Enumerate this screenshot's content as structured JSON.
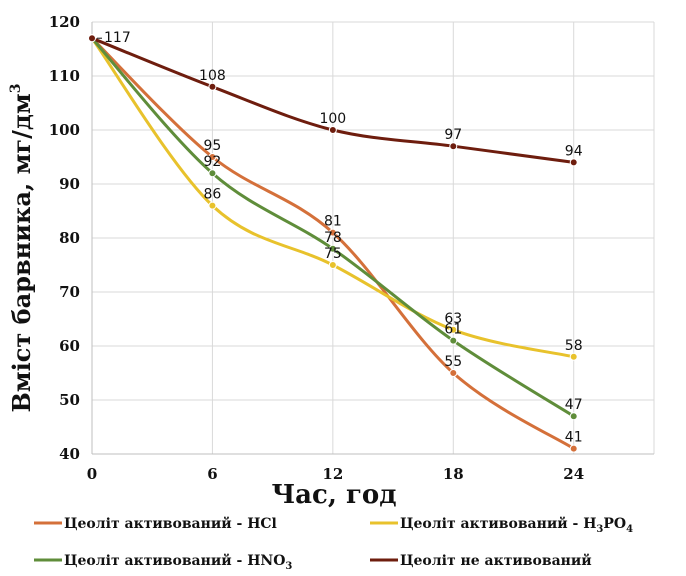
{
  "chart_data": {
    "type": "line",
    "xlabel": "Час, год",
    "ylabel": "Вміст барвника, мг/дм",
    "ylabel_sup": "3",
    "x": [
      0,
      6,
      12,
      18,
      24
    ],
    "xlim": [
      0,
      28
    ],
    "ylim": [
      40,
      120
    ],
    "x_ticks": [
      0,
      6,
      12,
      18,
      24
    ],
    "y_ticks": [
      40,
      50,
      60,
      70,
      80,
      90,
      100,
      110,
      120
    ],
    "grid": true,
    "legend_position": "bottom",
    "series": [
      {
        "name": "Цеоліт активований - HCl",
        "color": "#d4703a",
        "values": [
          117,
          95,
          81,
          55,
          41
        ]
      },
      {
        "name": "Цеоліт активований - H3PO4",
        "name_main": "Цеоліт активований - H",
        "name_sub1": "3",
        "name_mid": "PO",
        "name_sub2": "4",
        "color": "#e8c22c",
        "values": [
          117,
          86,
          75,
          63,
          58
        ]
      },
      {
        "name": "Цеоліт активований - HNO3",
        "name_main": "Цеоліт активований - HNO",
        "name_sub1": "3",
        "color": "#5f8d3a",
        "values": [
          117,
          92,
          78,
          61,
          47
        ]
      },
      {
        "name": "Цеоліт не активований",
        "color": "#6e1d0e",
        "values": [
          117,
          108,
          100,
          97,
          94
        ]
      }
    ],
    "data_labels": [
      {
        "x": 0,
        "y": 117,
        "text": "117"
      },
      {
        "x": 6,
        "y": 108,
        "text": "108"
      },
      {
        "x": 12,
        "y": 100,
        "text": "100"
      },
      {
        "x": 18,
        "y": 97,
        "text": "97"
      },
      {
        "x": 24,
        "y": 94,
        "text": "94"
      },
      {
        "x": 6,
        "y": 95,
        "text": "95"
      },
      {
        "x": 6,
        "y": 92,
        "text": "92"
      },
      {
        "x": 6,
        "y": 86,
        "text": "86"
      },
      {
        "x": 12,
        "y": 81,
        "text": "81"
      },
      {
        "x": 12,
        "y": 78,
        "text": "78"
      },
      {
        "x": 12,
        "y": 75,
        "text": "75"
      },
      {
        "x": 18,
        "y": 63,
        "text": "63"
      },
      {
        "x": 18,
        "y": 61,
        "text": "61"
      },
      {
        "x": 18,
        "y": 55,
        "text": "55"
      },
      {
        "x": 24,
        "y": 58,
        "text": "58"
      },
      {
        "x": 24,
        "y": 47,
        "text": "47"
      },
      {
        "x": 24,
        "y": 41,
        "text": "41"
      }
    ]
  }
}
